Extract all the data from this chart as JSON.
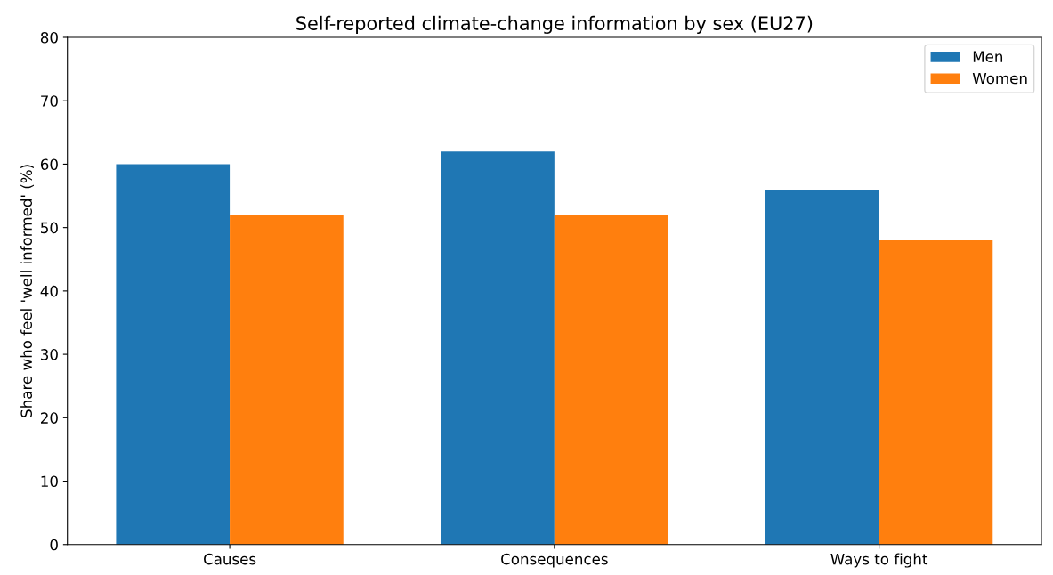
{
  "chart_data": {
    "type": "bar",
    "title": "Self-reported climate-change information by sex (EU27)",
    "ylabel": "Share who feel 'well informed' (%)",
    "categories": [
      "Causes",
      "Consequences",
      "Ways to fight"
    ],
    "series": [
      {
        "name": "Men",
        "color": "#1f77b4",
        "values": [
          60,
          62,
          56
        ]
      },
      {
        "name": "Women",
        "color": "#ff7f0e",
        "values": [
          52,
          52,
          48
        ]
      }
    ],
    "ylim": [
      0,
      80
    ],
    "yticks": [
      0,
      10,
      20,
      30,
      40,
      50,
      60,
      70,
      80
    ],
    "grid": false,
    "legend": "top right"
  }
}
